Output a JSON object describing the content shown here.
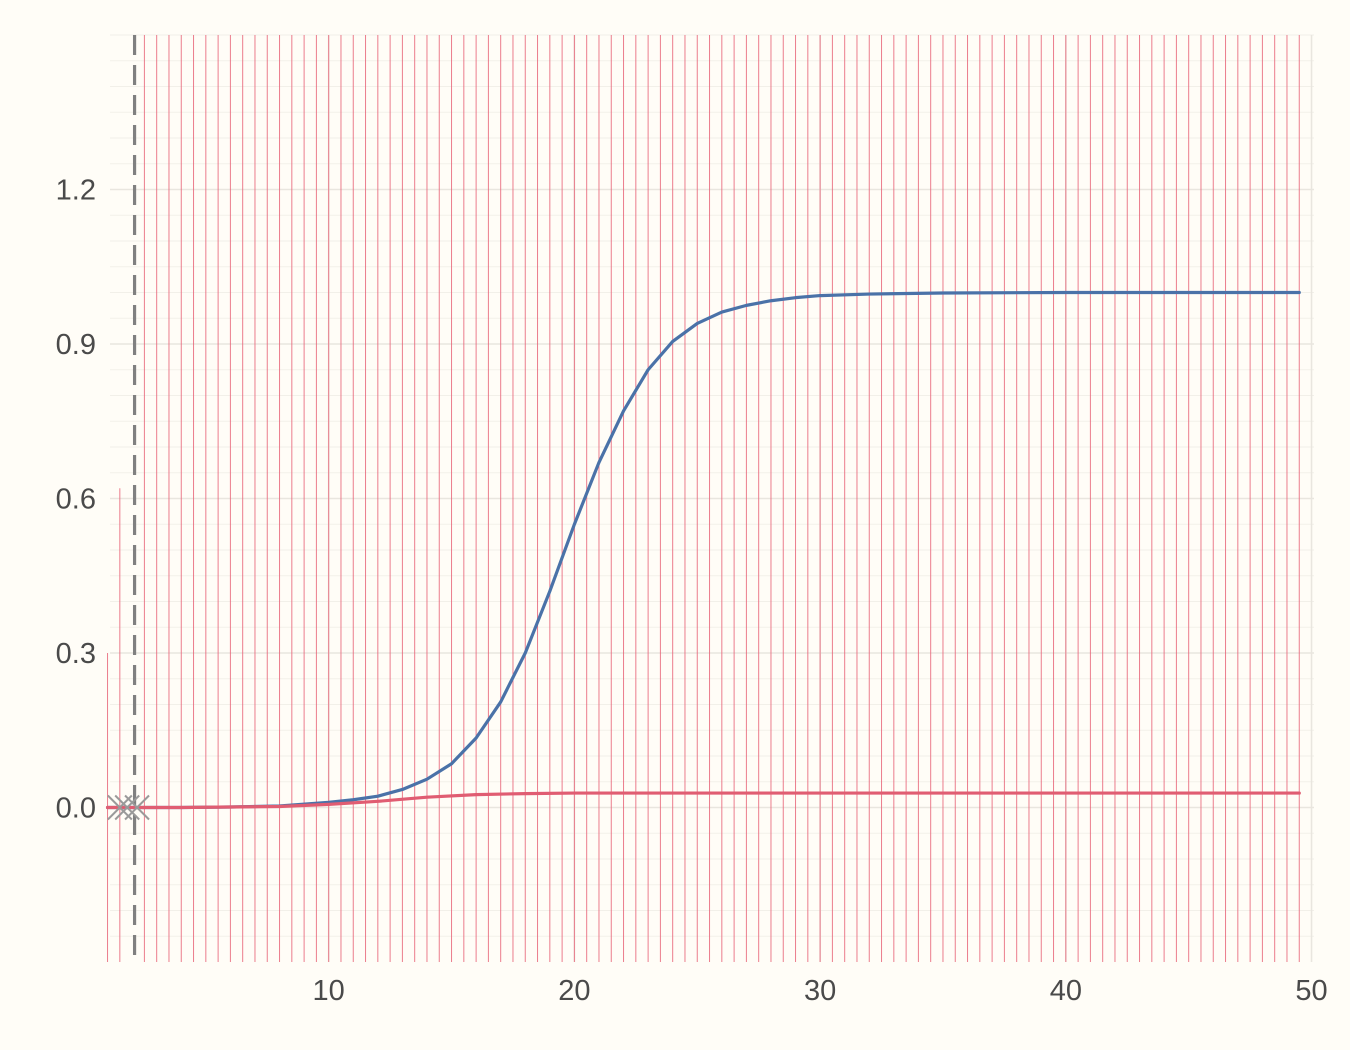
{
  "chart_data": {
    "type": "line",
    "title": "",
    "xlabel": "",
    "ylabel": "",
    "xlim": [
      1.1,
      50.1
    ],
    "ylim": [
      -0.3,
      1.5
    ],
    "x_ticks": [
      10,
      20,
      30,
      40,
      50
    ],
    "y_ticks": [
      0.0,
      0.3,
      0.6,
      0.9,
      1.2
    ],
    "x_tick_labels": [
      "10",
      "20",
      "30",
      "40",
      "50"
    ],
    "y_tick_labels": [
      "0.0",
      "0.3",
      "0.6",
      "0.9",
      "1.2"
    ],
    "grid": true,
    "legend": "none",
    "colors": {
      "background": "#fffdf7",
      "grid": "#e9e6df",
      "rug": "#e8667a",
      "series_blue": "#4a72a8",
      "series_red": "#e05d72",
      "reference_line": "#808080",
      "markers": "#9a9a9a"
    },
    "reference_line": {
      "x": 2.1,
      "style": "dashed"
    },
    "rug_lines": {
      "start": 1.5,
      "end": 49.5,
      "step": 0.5,
      "ymin": -0.3,
      "ymax": 1.5
    },
    "rug_short_lines": [
      {
        "x": 1.5,
        "ymax": 0.62
      },
      {
        "x": 1.0,
        "ymax": 0.3
      }
    ],
    "markers": [
      {
        "x": 1.5,
        "y": 0.0,
        "shape": "x"
      },
      {
        "x": 1.8,
        "y": 0.0,
        "shape": "x"
      },
      {
        "x": 2.2,
        "y": 0.0,
        "shape": "x"
      }
    ],
    "series": [
      {
        "color": "#4a72a8",
        "x": [
          1,
          4,
          6,
          8,
          10,
          11,
          12,
          13,
          14,
          15,
          16,
          17,
          18,
          19,
          20,
          21,
          22,
          23,
          24,
          25,
          26,
          27,
          28,
          29,
          30,
          32,
          35,
          40,
          45,
          49.5
        ],
        "y": [
          0.0,
          0.0,
          0.001,
          0.003,
          0.01,
          0.015,
          0.022,
          0.035,
          0.055,
          0.085,
          0.135,
          0.205,
          0.3,
          0.42,
          0.55,
          0.67,
          0.77,
          0.85,
          0.905,
          0.94,
          0.962,
          0.975,
          0.984,
          0.99,
          0.994,
          0.997,
          0.999,
          1.0,
          1.0,
          1.0
        ]
      },
      {
        "color": "#e05d72",
        "x": [
          1,
          4,
          6,
          8,
          10,
          12,
          14,
          16,
          18,
          20,
          25,
          30,
          40,
          49.5
        ],
        "y": [
          0.0,
          0.0,
          0.001,
          0.002,
          0.006,
          0.012,
          0.02,
          0.025,
          0.027,
          0.028,
          0.028,
          0.028,
          0.028,
          0.028
        ]
      }
    ]
  }
}
